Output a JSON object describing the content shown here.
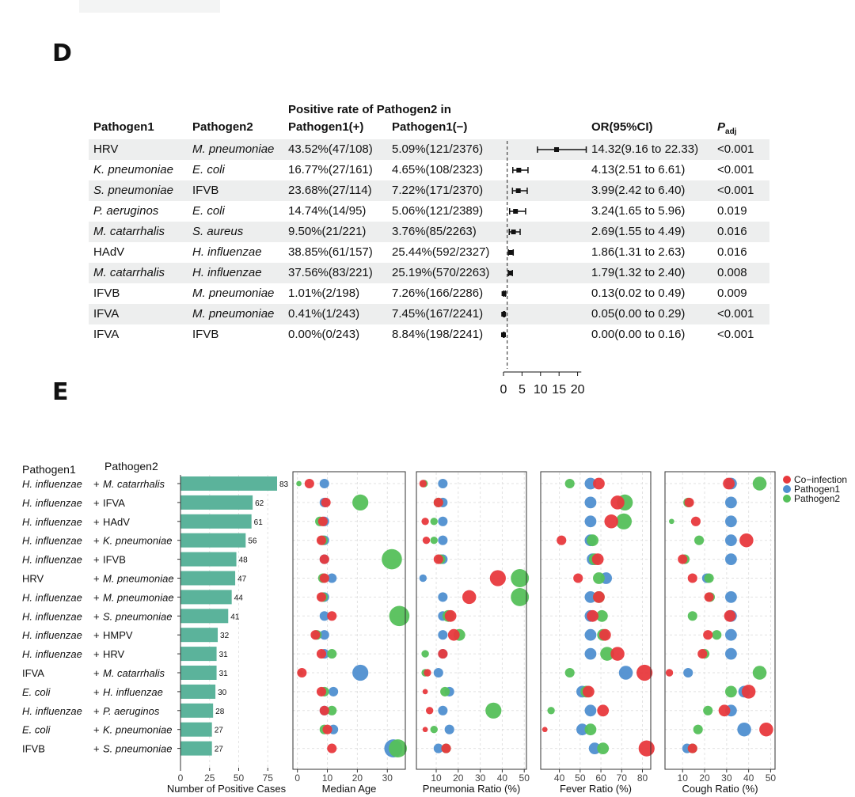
{
  "panel_d": {
    "label": "D",
    "header": {
      "group_title": "Positive rate of Pathogen2 in",
      "pathogen1": "Pathogen1",
      "pathogen2": "Pathogen2",
      "pos": "Pathogen1(+)",
      "neg": "Pathogen1(−)",
      "or": "OR(95%CI)",
      "padj_main": "P",
      "padj_sub": "adj"
    },
    "rows": [
      {
        "p1": "HRV",
        "p1_it": false,
        "p2": "M. pneumoniae",
        "p2_it": true,
        "pos": "43.52%(47/108)",
        "neg": "5.09%(121/2376)",
        "or_text": "14.32(9.16 to 22.33)",
        "padj": "<0.001",
        "or": 14.32,
        "lo": 9.16,
        "hi": 22.33
      },
      {
        "p1": "K. pneumoniae",
        "p1_it": true,
        "p2": "E. coli",
        "p2_it": true,
        "pos": "16.77%(27/161)",
        "neg": "4.65%(108/2323)",
        "or_text": "4.13(2.51 to 6.61)",
        "padj": "<0.001",
        "or": 4.13,
        "lo": 2.51,
        "hi": 6.61
      },
      {
        "p1": "S. pneumoniae",
        "p1_it": true,
        "p2": "IFVB",
        "p2_it": false,
        "pos": "23.68%(27/114)",
        "neg": "7.22%(171/2370)",
        "or_text": "3.99(2.42 to 6.40)",
        "padj": "<0.001",
        "or": 3.99,
        "lo": 2.42,
        "hi": 6.4
      },
      {
        "p1": "P. aeruginos",
        "p1_it": true,
        "p2": "E. coli",
        "p2_it": true,
        "pos": "14.74%(14/95)",
        "neg": "5.06%(121/2389)",
        "or_text": "3.24(1.65 to 5.96)",
        "padj": "0.019",
        "or": 3.24,
        "lo": 1.65,
        "hi": 5.96
      },
      {
        "p1": "M. catarrhalis",
        "p1_it": true,
        "p2": "S. aureus",
        "p2_it": true,
        "pos": "9.50%(21/221)",
        "neg": "3.76%(85/2263)",
        "or_text": "2.69(1.55 to 4.49)",
        "padj": "0.016",
        "or": 2.69,
        "lo": 1.55,
        "hi": 4.49
      },
      {
        "p1": "HAdV",
        "p1_it": false,
        "p2": "H. influenzae",
        "p2_it": true,
        "pos": "38.85%(61/157)",
        "neg": "25.44%(592/2327)",
        "or_text": "1.86(1.31 to 2.63)",
        "padj": "0.016",
        "or": 1.86,
        "lo": 1.31,
        "hi": 2.63
      },
      {
        "p1": "M. catarrhalis",
        "p1_it": true,
        "p2": "H. influenzae",
        "p2_it": true,
        "pos": "37.56%(83/221)",
        "neg": "25.19%(570/2263)",
        "or_text": "1.79(1.32 to 2.40)",
        "padj": "0.008",
        "or": 1.79,
        "lo": 1.32,
        "hi": 2.4
      },
      {
        "p1": "IFVB",
        "p1_it": false,
        "p2": "M. pneumoniae",
        "p2_it": true,
        "pos": "1.01%(2/198)",
        "neg": "7.26%(166/2286)",
        "or_text": "0.13(0.02 to 0.49)",
        "padj": "0.009",
        "or": 0.13,
        "lo": 0.02,
        "hi": 0.49
      },
      {
        "p1": "IFVA",
        "p1_it": false,
        "p2": "M. pneumoniae",
        "p2_it": true,
        "pos": "0.41%(1/243)",
        "neg": "7.45%(167/2241)",
        "or_text": "0.05(0.00 to 0.29)",
        "padj": "<0.001",
        "or": 0.05,
        "lo": 0.0,
        "hi": 0.29
      },
      {
        "p1": "IFVA",
        "p1_it": false,
        "p2": "IFVB",
        "p2_it": false,
        "pos": "0.00%(0/243)",
        "neg": "8.84%(198/2241)",
        "or_text": "0.00(0.00 to 0.16)",
        "padj": "<0.001",
        "or": 0.0,
        "lo": 0.0,
        "hi": 0.16
      }
    ],
    "axis_ticks": [
      "0",
      "5",
      "10",
      "15",
      "20"
    ],
    "axis_values": [
      0,
      5,
      10,
      15,
      20
    ]
  },
  "panel_e": {
    "label": "E"
  },
  "chart_data": [
    {
      "type": "forest",
      "title": "OR(95%CI)",
      "xlim": [
        0,
        22
      ],
      "reference_line": 1,
      "rows": [
        "HRV + M. pneumoniae",
        "K. pneumoniae + E. coli",
        "S. pneumoniae + IFVB",
        "P. aeruginos + E. coli",
        "M. catarrhalis + S. aureus",
        "HAdV + H. influenzae",
        "M. catarrhalis + H. influenzae",
        "IFVB + M. pneumoniae",
        "IFVA + M. pneumoniae",
        "IFVA + IFVB"
      ]
    },
    {
      "type": "bar",
      "orientation": "horizontal",
      "col1_header": "Pathogen1",
      "col2_header": "Pathogen2",
      "plus": "+",
      "xlabel": "Number of Positive Cases",
      "xticks": [
        0,
        25,
        50,
        75
      ],
      "xlim": [
        0,
        83
      ],
      "bar_color": "#5bb39b",
      "pairs": [
        {
          "p1": "H. influenzae",
          "p1_it": true,
          "p2": "M. catarrhalis",
          "p2_it": true,
          "count": 83
        },
        {
          "p1": "H. influenzae",
          "p1_it": true,
          "p2": "IFVA",
          "p2_it": false,
          "count": 62
        },
        {
          "p1": "H. influenzae",
          "p1_it": true,
          "p2": "HAdV",
          "p2_it": false,
          "count": 61
        },
        {
          "p1": "H. influenzae",
          "p1_it": true,
          "p2": "K. pneumoniae",
          "p2_it": true,
          "count": 56
        },
        {
          "p1": "H. influenzae",
          "p1_it": true,
          "p2": "IFVB",
          "p2_it": false,
          "count": 48
        },
        {
          "p1": "HRV",
          "p1_it": false,
          "p2": "M. pneumoniae",
          "p2_it": true,
          "count": 47
        },
        {
          "p1": "H. influenzae",
          "p1_it": true,
          "p2": "M. pneumoniae",
          "p2_it": true,
          "count": 44
        },
        {
          "p1": "H. influenzae",
          "p1_it": true,
          "p2": "S. pneumoniae",
          "p2_it": true,
          "count": 41
        },
        {
          "p1": "H. influenzae",
          "p1_it": true,
          "p2": "HMPV",
          "p2_it": false,
          "count": 32
        },
        {
          "p1": "H. influenzae",
          "p1_it": true,
          "p2": "HRV",
          "p2_it": false,
          "count": 31
        },
        {
          "p1": "IFVA",
          "p1_it": false,
          "p2": "M. catarrhalis",
          "p2_it": true,
          "count": 31
        },
        {
          "p1": "E. coli",
          "p1_it": true,
          "p2": "H. influenzae",
          "p2_it": true,
          "count": 30
        },
        {
          "p1": "H. influenzae",
          "p1_it": true,
          "p2": "P. aeruginos",
          "p2_it": true,
          "count": 28
        },
        {
          "p1": "E. coli",
          "p1_it": true,
          "p2": "K. pneumoniae",
          "p2_it": true,
          "count": 27
        },
        {
          "p1": "IFVB",
          "p1_it": false,
          "p2": "S. pneumoniae",
          "p2_it": true,
          "count": 27
        }
      ]
    },
    {
      "type": "scatter",
      "subtype": "dot-comparison",
      "legend": [
        {
          "name": "Co−infection",
          "color": "#e8393d"
        },
        {
          "name": "Pathogen1",
          "color": "#4f8fd0"
        },
        {
          "name": "Pathogen2",
          "color": "#55c05a"
        }
      ],
      "legend_position": "top-right",
      "note": "point size scales with sample size; order per row = [co-infection, pathogen1, pathogen2]",
      "panels": [
        {
          "xlabel": "Median Age",
          "xticks": [
            0,
            10,
            20,
            30
          ],
          "xlim": [
            -1.5,
            36
          ],
          "values": [
            [
              4,
              9,
              0.5
            ],
            [
              9.5,
              9,
              21
            ],
            [
              8.5,
              9,
              7.5
            ],
            [
              8,
              9,
              8.5
            ],
            [
              9,
              9,
              31.5
            ],
            [
              9,
              11.5,
              8.5
            ],
            [
              8,
              9,
              8.5
            ],
            [
              11.5,
              9,
              34
            ],
            [
              6,
              9,
              6.5
            ],
            [
              8,
              9,
              11.5
            ],
            [
              1.5,
              21,
              1
            ],
            [
              8,
              12,
              9
            ],
            [
              9,
              9,
              11.5
            ],
            [
              10,
              12,
              9
            ],
            [
              11.5,
              32,
              33.5
            ]
          ],
          "sizes": [
            [
              3,
              3,
              1
            ],
            [
              3,
              3,
              6
            ],
            [
              3,
              3,
              3
            ],
            [
              3,
              3,
              3
            ],
            [
              3,
              3,
              8
            ],
            [
              3,
              3,
              3
            ],
            [
              3,
              3,
              3
            ],
            [
              3,
              3,
              8
            ],
            [
              3,
              3,
              3
            ],
            [
              3,
              3,
              3
            ],
            [
              3,
              6,
              1
            ],
            [
              3,
              3,
              3
            ],
            [
              3,
              3,
              3
            ],
            [
              3,
              3,
              3
            ],
            [
              3,
              7,
              7
            ]
          ]
        },
        {
          "xlabel": "Pneumonia Ratio (%)",
          "xticks": [
            10,
            20,
            30,
            40,
            50
          ],
          "xlim": [
            1,
            51
          ],
          "values": [
            [
              4,
              13,
              4.5
            ],
            [
              11,
              13,
              11
            ],
            [
              5,
              13,
              9
            ],
            [
              5.5,
              13,
              9
            ],
            [
              11,
              13,
              12
            ],
            [
              38,
              4,
              48
            ],
            [
              25,
              13,
              48
            ],
            [
              16.5,
              13,
              15.5
            ],
            [
              18,
              13,
              20.5
            ],
            [
              13,
              13,
              5
            ],
            [
              6,
              11,
              5
            ],
            [
              5,
              16,
              14
            ],
            [
              7,
              13,
              36
            ],
            [
              5,
              16,
              9
            ],
            [
              14.5,
              11,
              14.5
            ]
          ],
          "sizes": [
            [
              2,
              3,
              2
            ],
            [
              3,
              3,
              3
            ],
            [
              2,
              3,
              2
            ],
            [
              2,
              3,
              2
            ],
            [
              3,
              3,
              3
            ],
            [
              6,
              2,
              7
            ],
            [
              5,
              3,
              7
            ],
            [
              4,
              3,
              4
            ],
            [
              4,
              3,
              4
            ],
            [
              3,
              3,
              2
            ],
            [
              2,
              3,
              2
            ],
            [
              1,
              3,
              3
            ],
            [
              2,
              3,
              6
            ],
            [
              1,
              3,
              2
            ],
            [
              3,
              3,
              3
            ]
          ],
          "label_positions": [
            10,
            20,
            30,
            40,
            50
          ]
        },
        {
          "xlabel": "Fever Ratio (%)",
          "xticks": [
            40,
            50,
            60,
            70,
            80
          ],
          "xlim": [
            31,
            84
          ],
          "values": [
            [
              59,
              55,
              45
            ],
            [
              68,
              55,
              71.5
            ],
            [
              65,
              55,
              71
            ],
            [
              41,
              55,
              56
            ],
            [
              58.5,
              56,
              57
            ],
            [
              49,
              62.5,
              59
            ],
            [
              59,
              55,
              59
            ],
            [
              56,
              55,
              60.5
            ],
            [
              62,
              55,
              61
            ],
            [
              68,
              55,
              63
            ],
            [
              81,
              72,
              45
            ],
            [
              54,
              51,
              53
            ],
            [
              61,
              55,
              36
            ],
            [
              33,
              51,
              55
            ],
            [
              82,
              57,
              61
            ]
          ],
          "sizes": [
            [
              4,
              4,
              3
            ],
            [
              5,
              4,
              6
            ],
            [
              5,
              4,
              6
            ],
            [
              3,
              4,
              4
            ],
            [
              4,
              4,
              4
            ],
            [
              3,
              4,
              4
            ],
            [
              4,
              4,
              4
            ],
            [
              4,
              4,
              4
            ],
            [
              4,
              4,
              4
            ],
            [
              5,
              4,
              5
            ],
            [
              6,
              5,
              3
            ],
            [
              4,
              4,
              4
            ],
            [
              4,
              4,
              2
            ],
            [
              1,
              4,
              4
            ],
            [
              6,
              4,
              4
            ]
          ]
        },
        {
          "xlabel": "Cough Ratio (%)",
          "xticks": [
            10,
            20,
            30,
            40,
            50
          ],
          "xlim": [
            2,
            52
          ],
          "values": [
            [
              31,
              32,
              45
            ],
            [
              13,
              32,
              12.5
            ],
            [
              16,
              32,
              5
            ],
            [
              39,
              32,
              17.5
            ],
            [
              10,
              32,
              11
            ],
            [
              14.5,
              21,
              22
            ],
            [
              22,
              32,
              22.5
            ],
            [
              31.5,
              32,
              14.5
            ],
            [
              21.5,
              32,
              25.5
            ],
            [
              19,
              32,
              20
            ],
            [
              4,
              12.5,
              45
            ],
            [
              40,
              38,
              32
            ],
            [
              29,
              32,
              21.5
            ],
            [
              48,
              38,
              17
            ],
            [
              14.5,
              12,
              14.5
            ]
          ],
          "sizes": [
            [
              4,
              4,
              5
            ],
            [
              3,
              4,
              3
            ],
            [
              3,
              4,
              1
            ],
            [
              5,
              4,
              3
            ],
            [
              3,
              4,
              3
            ],
            [
              3,
              3,
              3
            ],
            [
              3,
              4,
              3
            ],
            [
              4,
              4,
              3
            ],
            [
              3,
              4,
              3
            ],
            [
              3,
              4,
              3
            ],
            [
              2,
              3,
              5
            ],
            [
              5,
              4,
              4
            ],
            [
              4,
              4,
              3
            ],
            [
              5,
              5,
              3
            ],
            [
              3,
              3,
              3
            ]
          ]
        }
      ]
    }
  ]
}
